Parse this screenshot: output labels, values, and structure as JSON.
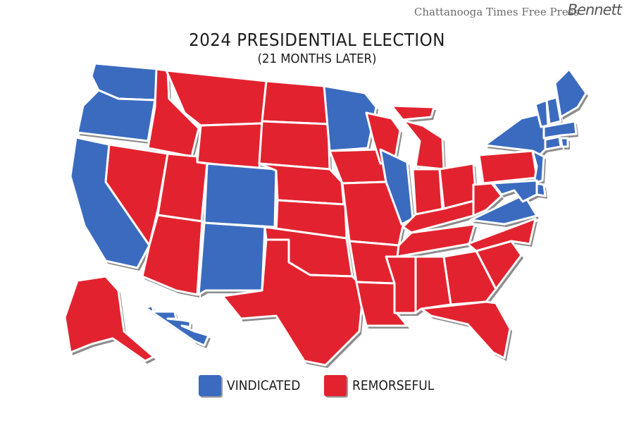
{
  "masthead": "Chattanooga Times Free Press",
  "signature": "Bennett",
  "map": {
    "title": "2024 PRESIDENTIAL ELECTION",
    "subtitle": "(21 MONTHS LATER)"
  },
  "colors": {
    "vindicated": "#3b6bbf",
    "remorseful": "#e2232f",
    "shadow": "#8c8c8c"
  },
  "legend": [
    {
      "label": "VINDICATED",
      "category": "vindicated"
    },
    {
      "label": "REMORSEFUL",
      "category": "remorseful"
    }
  ],
  "states": [
    {
      "abbr": "WA",
      "category": "vindicated"
    },
    {
      "abbr": "OR",
      "category": "vindicated"
    },
    {
      "abbr": "CA",
      "category": "vindicated"
    },
    {
      "abbr": "NV",
      "category": "remorseful"
    },
    {
      "abbr": "ID",
      "category": "remorseful"
    },
    {
      "abbr": "MT",
      "category": "remorseful"
    },
    {
      "abbr": "WY",
      "category": "remorseful"
    },
    {
      "abbr": "UT",
      "category": "remorseful"
    },
    {
      "abbr": "CO",
      "category": "vindicated"
    },
    {
      "abbr": "AZ",
      "category": "remorseful"
    },
    {
      "abbr": "NM",
      "category": "vindicated"
    },
    {
      "abbr": "ND",
      "category": "remorseful"
    },
    {
      "abbr": "SD",
      "category": "remorseful"
    },
    {
      "abbr": "NE",
      "category": "remorseful"
    },
    {
      "abbr": "KS",
      "category": "remorseful"
    },
    {
      "abbr": "OK",
      "category": "remorseful"
    },
    {
      "abbr": "TX",
      "category": "remorseful"
    },
    {
      "abbr": "MN",
      "category": "vindicated"
    },
    {
      "abbr": "IA",
      "category": "remorseful"
    },
    {
      "abbr": "MO",
      "category": "remorseful"
    },
    {
      "abbr": "AR",
      "category": "remorseful"
    },
    {
      "abbr": "LA",
      "category": "remorseful"
    },
    {
      "abbr": "WI",
      "category": "remorseful"
    },
    {
      "abbr": "IL",
      "category": "vindicated"
    },
    {
      "abbr": "MI",
      "category": "remorseful"
    },
    {
      "abbr": "IN",
      "category": "remorseful"
    },
    {
      "abbr": "OH",
      "category": "remorseful"
    },
    {
      "abbr": "KY",
      "category": "remorseful"
    },
    {
      "abbr": "TN",
      "category": "remorseful"
    },
    {
      "abbr": "MS",
      "category": "remorseful"
    },
    {
      "abbr": "AL",
      "category": "remorseful"
    },
    {
      "abbr": "GA",
      "category": "remorseful"
    },
    {
      "abbr": "FL",
      "category": "remorseful"
    },
    {
      "abbr": "SC",
      "category": "remorseful"
    },
    {
      "abbr": "NC",
      "category": "remorseful"
    },
    {
      "abbr": "VA",
      "category": "vindicated"
    },
    {
      "abbr": "WV",
      "category": "remorseful"
    },
    {
      "abbr": "PA",
      "category": "remorseful"
    },
    {
      "abbr": "NY",
      "category": "vindicated"
    },
    {
      "abbr": "NJ",
      "category": "vindicated"
    },
    {
      "abbr": "DE",
      "category": "vindicated"
    },
    {
      "abbr": "MD",
      "category": "vindicated"
    },
    {
      "abbr": "CT",
      "category": "vindicated"
    },
    {
      "abbr": "RI",
      "category": "vindicated"
    },
    {
      "abbr": "MA",
      "category": "vindicated"
    },
    {
      "abbr": "VT",
      "category": "vindicated"
    },
    {
      "abbr": "NH",
      "category": "vindicated"
    },
    {
      "abbr": "ME",
      "category": "vindicated"
    },
    {
      "abbr": "AK",
      "category": "remorseful"
    },
    {
      "abbr": "HI",
      "category": "vindicated"
    }
  ]
}
